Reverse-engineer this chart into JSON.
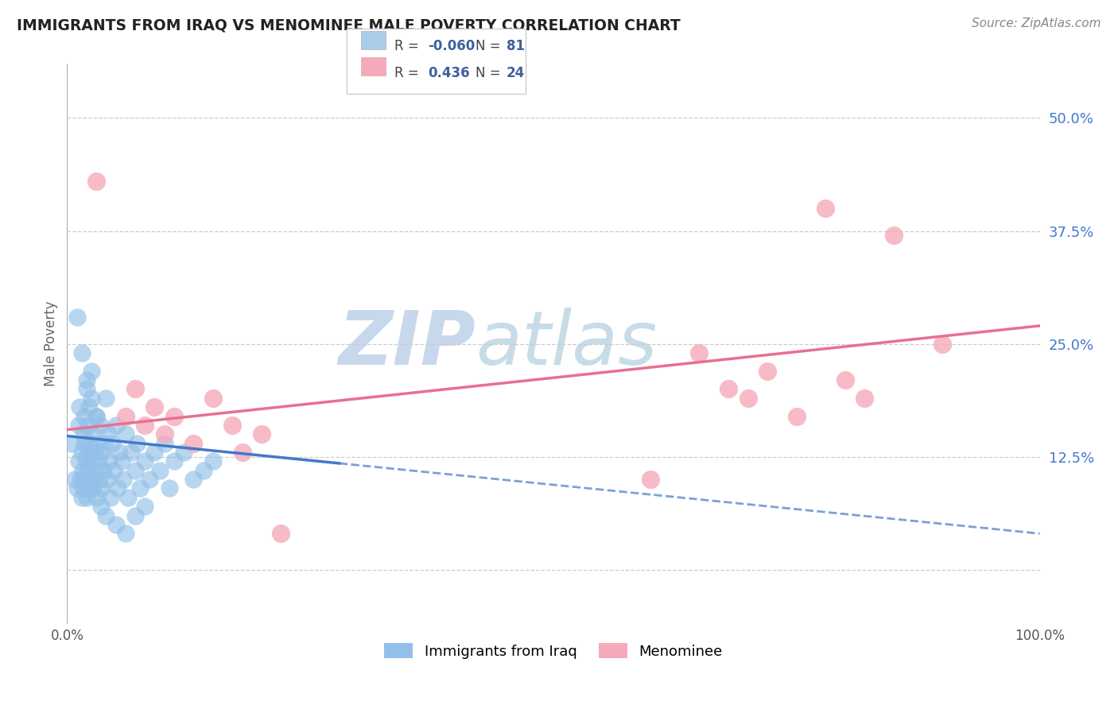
{
  "title": "IMMIGRANTS FROM IRAQ VS MENOMINEE MALE POVERTY CORRELATION CHART",
  "source": "Source: ZipAtlas.com",
  "ylabel": "Male Poverty",
  "yticks": [
    0.0,
    0.125,
    0.25,
    0.375,
    0.5
  ],
  "ytick_labels": [
    "",
    "12.5%",
    "25.0%",
    "37.5%",
    "50.0%"
  ],
  "xlim": [
    0.0,
    1.0
  ],
  "ylim": [
    -0.06,
    0.56
  ],
  "blue_N": 81,
  "pink_N": 24,
  "blue_color": "#92C0E8",
  "pink_color": "#F5AABB",
  "blue_line_color": "#4478C8",
  "pink_line_color": "#E87090",
  "watermark_color": "#D8E8F5",
  "background_color": "#FFFFFF",
  "legend_label_blue": "Immigrants from Iraq",
  "legend_label_pink": "Menominee",
  "grid_color": "#CCCCCC",
  "blue_legend_box": "#AACCE8",
  "pink_legend_box": "#F5AABB",
  "legend_text_R_N": "#4060A0",
  "blue_R_val": "-0.060",
  "pink_R_val": "0.436",
  "blue_N_val": "81",
  "pink_N_val": "24",
  "blue_x": [
    0.005,
    0.008,
    0.01,
    0.012,
    0.012,
    0.013,
    0.014,
    0.015,
    0.015,
    0.016,
    0.017,
    0.017,
    0.018,
    0.018,
    0.018,
    0.019,
    0.02,
    0.02,
    0.021,
    0.021,
    0.022,
    0.022,
    0.023,
    0.023,
    0.024,
    0.025,
    0.025,
    0.026,
    0.027,
    0.028,
    0.029,
    0.03,
    0.031,
    0.031,
    0.032,
    0.033,
    0.034,
    0.035,
    0.036,
    0.037,
    0.038,
    0.04,
    0.041,
    0.042,
    0.043,
    0.045,
    0.046,
    0.048,
    0.05,
    0.052,
    0.054,
    0.056,
    0.058,
    0.06,
    0.063,
    0.066,
    0.07,
    0.072,
    0.075,
    0.08,
    0.085,
    0.09,
    0.095,
    0.1,
    0.105,
    0.11,
    0.12,
    0.13,
    0.14,
    0.15,
    0.01,
    0.015,
    0.02,
    0.025,
    0.03,
    0.035,
    0.04,
    0.05,
    0.06,
    0.07,
    0.08
  ],
  "blue_y": [
    0.14,
    0.1,
    0.09,
    0.16,
    0.12,
    0.18,
    0.1,
    0.13,
    0.08,
    0.11,
    0.15,
    0.09,
    0.17,
    0.14,
    0.1,
    0.12,
    0.2,
    0.08,
    0.16,
    0.11,
    0.13,
    0.09,
    0.18,
    0.14,
    0.1,
    0.22,
    0.12,
    0.15,
    0.09,
    0.13,
    0.11,
    0.17,
    0.08,
    0.14,
    0.12,
    0.1,
    0.16,
    0.09,
    0.13,
    0.11,
    0.14,
    0.19,
    0.1,
    0.15,
    0.12,
    0.08,
    0.14,
    0.11,
    0.16,
    0.09,
    0.13,
    0.12,
    0.1,
    0.15,
    0.08,
    0.13,
    0.11,
    0.14,
    0.09,
    0.12,
    0.1,
    0.13,
    0.11,
    0.14,
    0.09,
    0.12,
    0.13,
    0.1,
    0.11,
    0.12,
    0.28,
    0.24,
    0.21,
    0.19,
    0.17,
    0.07,
    0.06,
    0.05,
    0.04,
    0.06,
    0.07
  ],
  "pink_x": [
    0.03,
    0.06,
    0.07,
    0.08,
    0.09,
    0.1,
    0.11,
    0.13,
    0.15,
    0.17,
    0.18,
    0.2,
    0.22,
    0.6,
    0.65,
    0.68,
    0.7,
    0.72,
    0.75,
    0.78,
    0.8,
    0.82,
    0.85,
    0.9
  ],
  "pink_y": [
    0.43,
    0.17,
    0.2,
    0.16,
    0.18,
    0.15,
    0.17,
    0.14,
    0.19,
    0.16,
    0.13,
    0.15,
    0.04,
    0.1,
    0.24,
    0.2,
    0.19,
    0.22,
    0.17,
    0.4,
    0.21,
    0.19,
    0.37,
    0.25
  ],
  "blue_line_x0": 0.0,
  "blue_line_y0": 0.148,
  "blue_line_x1": 1.0,
  "blue_line_y1": 0.04,
  "pink_line_x0": 0.0,
  "pink_line_y0": 0.155,
  "pink_line_x1": 1.0,
  "pink_line_y1": 0.27
}
